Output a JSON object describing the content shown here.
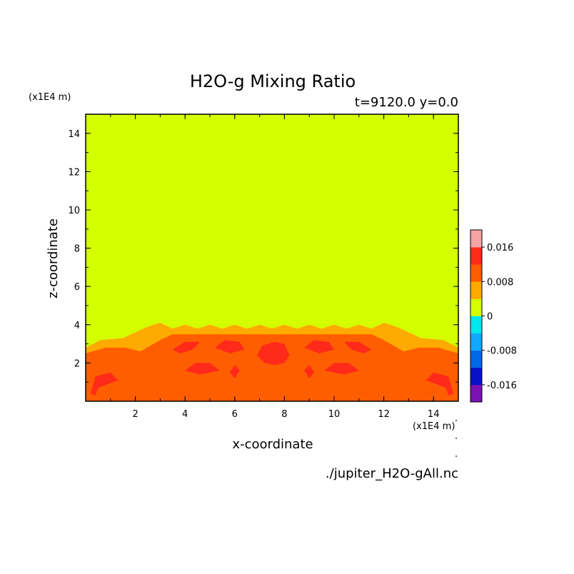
{
  "chart_data": {
    "type": "heatmap",
    "title": "H2O-g Mixing Ratio",
    "subtitle": "t=9120.0 y=0.0",
    "xlabel": "x-coordinate",
    "ylabel": "z-coordinate",
    "x_unit": "(x1E4 m)",
    "y_unit": "(x1E4 m)",
    "source_file": "./jupiter_H2O-gAll.nc",
    "xlim": [
      0,
      15
    ],
    "ylim": [
      0,
      15
    ],
    "x_ticks": [
      2,
      4,
      6,
      8,
      10,
      12,
      14
    ],
    "y_ticks": [
      2,
      4,
      6,
      8,
      10,
      12,
      14
    ],
    "colorbar": {
      "levels": [
        -0.02,
        -0.016,
        -0.012,
        -0.008,
        -0.004,
        0,
        0.004,
        0.008,
        0.012,
        0.016,
        0.02
      ],
      "colors": [
        "#7a12b4",
        "#0a10c8",
        "#0068e6",
        "#12a8ff",
        "#00e8ee",
        "#d4ff00",
        "#ffaa00",
        "#ff5e00",
        "#ff2a1a",
        "#f5a3a5"
      ],
      "labels": [
        "-0.016",
        "-0.008",
        "0",
        "0.008",
        "0.016"
      ],
      "label_values": [
        -0.016,
        -0.008,
        0,
        0.008,
        0.016
      ]
    },
    "fields": [
      {
        "level": "0 to 0.004",
        "color": "#d4ff00",
        "polygon": [
          [
            0,
            0
          ],
          [
            15,
            0
          ],
          [
            15,
            15
          ],
          [
            0,
            15
          ]
        ]
      },
      {
        "level": "0.004 to 0.008",
        "color": "#ffaa00",
        "polygon": [
          [
            0,
            0
          ],
          [
            0,
            2.8
          ],
          [
            0.6,
            3.2
          ],
          [
            1.5,
            3.3
          ],
          [
            2.0,
            3.6
          ],
          [
            2.5,
            3.9
          ],
          [
            3.0,
            4.1
          ],
          [
            3.5,
            3.8
          ],
          [
            4.0,
            4.0
          ],
          [
            4.5,
            3.8
          ],
          [
            5.0,
            4.0
          ],
          [
            5.5,
            3.8
          ],
          [
            6.0,
            4.0
          ],
          [
            6.5,
            3.8
          ],
          [
            7.0,
            4.0
          ],
          [
            7.5,
            3.8
          ],
          [
            8.0,
            4.0
          ],
          [
            8.5,
            3.8
          ],
          [
            9.0,
            4.0
          ],
          [
            9.5,
            3.8
          ],
          [
            10.0,
            4.0
          ],
          [
            10.5,
            3.8
          ],
          [
            11.0,
            4.0
          ],
          [
            11.5,
            3.8
          ],
          [
            12.0,
            4.1
          ],
          [
            12.5,
            3.9
          ],
          [
            13.0,
            3.6
          ],
          [
            13.5,
            3.3
          ],
          [
            14.4,
            3.2
          ],
          [
            15,
            2.8
          ],
          [
            15,
            0
          ]
        ]
      },
      {
        "level": "0.008 to 0.012",
        "color": "#ff5e00",
        "polygon": [
          [
            0,
            0
          ],
          [
            0,
            2.5
          ],
          [
            0.8,
            2.8
          ],
          [
            1.6,
            2.8
          ],
          [
            2.2,
            2.6
          ],
          [
            2.6,
            2.9
          ],
          [
            3.0,
            3.2
          ],
          [
            3.5,
            3.5
          ],
          [
            7.5,
            3.5
          ],
          [
            11.5,
            3.5
          ],
          [
            12.0,
            3.2
          ],
          [
            12.4,
            2.9
          ],
          [
            12.8,
            2.6
          ],
          [
            13.4,
            2.8
          ],
          [
            14.2,
            2.8
          ],
          [
            15,
            2.5
          ],
          [
            15,
            0
          ]
        ]
      },
      {
        "level": "0.012 to 0.016",
        "color": "#ff2a1a",
        "polygons": [
          [
            [
              0.2,
              0.4
            ],
            [
              0.4,
              1.3
            ],
            [
              1.0,
              1.5
            ],
            [
              1.3,
              1.1
            ],
            [
              0.9,
              0.9
            ],
            [
              0.5,
              0.7
            ],
            [
              0.4,
              0.3
            ]
          ],
          [
            [
              14.8,
              0.4
            ],
            [
              14.6,
              1.3
            ],
            [
              14.0,
              1.5
            ],
            [
              13.7,
              1.1
            ],
            [
              14.1,
              0.9
            ],
            [
              14.5,
              0.7
            ],
            [
              14.6,
              0.3
            ]
          ],
          [
            [
              6.9,
              2.4
            ],
            [
              7.2,
              2.0
            ],
            [
              7.6,
              1.9
            ],
            [
              8.0,
              2.0
            ],
            [
              8.2,
              2.4
            ],
            [
              8.0,
              3.0
            ],
            [
              7.6,
              3.1
            ],
            [
              7.1,
              2.9
            ]
          ],
          [
            [
              5.2,
              2.8
            ],
            [
              5.8,
              2.5
            ],
            [
              6.4,
              2.7
            ],
            [
              6.2,
              3.1
            ],
            [
              5.6,
              3.2
            ]
          ],
          [
            [
              8.8,
              2.8
            ],
            [
              9.4,
              2.5
            ],
            [
              10.0,
              2.7
            ],
            [
              9.8,
              3.1
            ],
            [
              9.2,
              3.2
            ]
          ],
          [
            [
              3.5,
              2.7
            ],
            [
              4.0,
              3.1
            ],
            [
              4.6,
              3.1
            ],
            [
              4.3,
              2.7
            ],
            [
              3.8,
              2.5
            ]
          ],
          [
            [
              11.5,
              2.7
            ],
            [
              11.0,
              3.1
            ],
            [
              10.4,
              3.1
            ],
            [
              10.7,
              2.7
            ],
            [
              11.2,
              2.5
            ]
          ],
          [
            [
              4.0,
              1.6
            ],
            [
              4.6,
              1.4
            ],
            [
              5.4,
              1.6
            ],
            [
              5.0,
              2.0
            ],
            [
              4.4,
              2.0
            ]
          ],
          [
            [
              11.0,
              1.6
            ],
            [
              10.4,
              1.4
            ],
            [
              9.6,
              1.6
            ],
            [
              10.0,
              2.0
            ],
            [
              10.6,
              2.0
            ]
          ],
          [
            [
              5.8,
              1.5
            ],
            [
              6.0,
              1.2
            ],
            [
              6.2,
              1.6
            ],
            [
              6.0,
              1.9
            ]
          ],
          [
            [
              9.2,
              1.5
            ],
            [
              9.0,
              1.2
            ],
            [
              8.8,
              1.6
            ],
            [
              9.0,
              1.9
            ]
          ]
        ]
      }
    ]
  }
}
